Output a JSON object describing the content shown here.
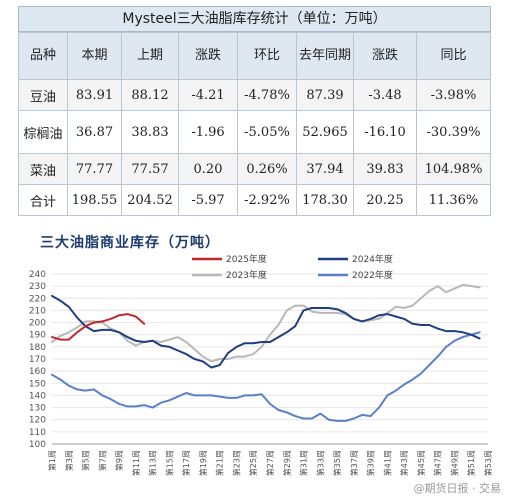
{
  "table": {
    "title": "Mysteel三大油脂库存统计（单位：万吨）",
    "headers": [
      "品种",
      "本期",
      "上期",
      "涨跌",
      "环比",
      "去年同期",
      "涨跌",
      "同比"
    ],
    "rows": [
      {
        "name": "豆油",
        "cur": "83.91",
        "prev": "88.12",
        "chg": "-4.21",
        "ratio": "-4.78%",
        "ly": "87.39",
        "lychg": "-3.48",
        "yoy": "-3.98%"
      },
      {
        "name": "棕榈油",
        "cur": "36.87",
        "prev": "38.83",
        "chg": "-1.96",
        "ratio": "-5.05%",
        "ly": "52.965",
        "lychg": "-16.10",
        "yoy": "-30.39%"
      },
      {
        "name": "菜油",
        "cur": "77.77",
        "prev": "77.57",
        "chg": "0.20",
        "ratio": "0.26%",
        "ly": "37.94",
        "lychg": "39.83",
        "yoy": "104.98%"
      },
      {
        "name": "合计",
        "cur": "198.55",
        "prev": "204.52",
        "chg": "-5.97",
        "ratio": "-2.92%",
        "ly": "178.30",
        "lychg": "20.25",
        "yoy": "11.36%"
      }
    ]
  },
  "chart_data": {
    "type": "line",
    "title": "三大油脂商业库存（万吨）",
    "ylim": [
      100,
      240
    ],
    "ytick_step": 10,
    "x_labels": [
      "第1周",
      "第3周",
      "第5周",
      "第7周",
      "第9周",
      "第11周",
      "第13周",
      "第15周",
      "第17周",
      "第19周",
      "第21周",
      "第23周",
      "第25周",
      "第27周",
      "第29周",
      "第31周",
      "第33周",
      "第35周",
      "第37周",
      "第39周",
      "第41周",
      "第43周",
      "第45周",
      "第47周",
      "第49周",
      "第51周",
      "第53周"
    ],
    "legend": [
      "2025年度",
      "2024年度",
      "2023年度",
      "2022年度"
    ],
    "series": [
      {
        "name": "2025年度",
        "color": "#c0282d",
        "x": [
          1,
          2,
          3,
          4,
          5,
          6,
          7,
          8,
          9,
          10,
          11,
          12
        ],
        "values": [
          188,
          186,
          186,
          192,
          197,
          200,
          201,
          203,
          206,
          207,
          205,
          199
        ]
      },
      {
        "name": "2024年度",
        "color": "#1f3f80",
        "x": [
          1,
          2,
          3,
          4,
          5,
          6,
          7,
          8,
          9,
          10,
          11,
          12,
          13,
          14,
          15,
          16,
          17,
          18,
          19,
          20,
          21,
          22,
          23,
          24,
          25,
          26,
          27,
          28,
          29,
          30,
          31,
          32,
          33,
          34,
          35,
          36,
          37,
          38,
          39,
          40,
          41,
          42,
          43,
          44,
          45,
          46,
          47,
          48,
          49,
          50,
          51,
          52
        ],
        "values": [
          222,
          218,
          213,
          204,
          197,
          193,
          194,
          194,
          192,
          188,
          185,
          184,
          185,
          181,
          180,
          177,
          174,
          170,
          168,
          163,
          165,
          175,
          180,
          183,
          183,
          184,
          184,
          188,
          192,
          197,
          210,
          212,
          212,
          212,
          211,
          208,
          203,
          201,
          203,
          206,
          207,
          205,
          203,
          199,
          198,
          198,
          195,
          193,
          193,
          192,
          190,
          187
        ]
      },
      {
        "name": "2023年度",
        "color": "#b8b8b8",
        "x": [
          1,
          2,
          3,
          4,
          5,
          6,
          7,
          8,
          9,
          10,
          11,
          12,
          13,
          14,
          15,
          16,
          17,
          18,
          19,
          20,
          21,
          22,
          23,
          24,
          25,
          26,
          27,
          28,
          29,
          30,
          31,
          32,
          33,
          34,
          35,
          36,
          37,
          38,
          39,
          40,
          41,
          42,
          43,
          44,
          45,
          46,
          47,
          48,
          49,
          50,
          51,
          52
        ],
        "values": [
          184,
          189,
          192,
          196,
          201,
          201,
          200,
          195,
          192,
          185,
          181,
          184,
          185,
          184,
          186,
          188,
          184,
          178,
          172,
          168,
          170,
          170,
          172,
          172,
          174,
          180,
          190,
          198,
          210,
          214,
          214,
          209,
          208,
          208,
          208,
          207,
          203,
          201,
          202,
          203,
          208,
          213,
          212,
          214,
          220,
          226,
          230,
          225,
          228,
          231,
          230,
          229
        ]
      },
      {
        "name": "2022年度",
        "color": "#5a7fcb",
        "x": [
          1,
          2,
          3,
          4,
          5,
          6,
          7,
          8,
          9,
          10,
          11,
          12,
          13,
          14,
          15,
          16,
          17,
          18,
          19,
          20,
          21,
          22,
          23,
          24,
          25,
          26,
          27,
          28,
          29,
          30,
          31,
          32,
          33,
          34,
          35,
          36,
          37,
          38,
          39,
          40,
          41,
          42,
          43,
          44,
          45,
          46,
          47,
          48,
          49,
          50,
          51,
          52
        ],
        "values": [
          157,
          153,
          148,
          145,
          144,
          145,
          140,
          137,
          133,
          131,
          131,
          132,
          130,
          134,
          136,
          139,
          142,
          140,
          140,
          140,
          139,
          138,
          138,
          140,
          140,
          141,
          133,
          128,
          126,
          123,
          121,
          121,
          125,
          120,
          119,
          119,
          121,
          124,
          123,
          130,
          140,
          144,
          149,
          153,
          158,
          165,
          172,
          180,
          185,
          188,
          190,
          192
        ]
      }
    ]
  },
  "watermark": "@期货日报 · 交易"
}
